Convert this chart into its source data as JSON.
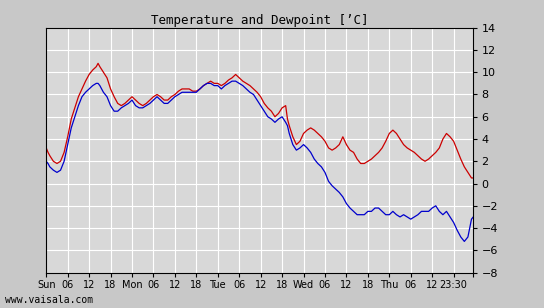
{
  "title": "Temperature and Dewpoint [’C]",
  "watermark": "www.vaisala.com",
  "ylim": [
    -8,
    14
  ],
  "yticks": [
    -8,
    -6,
    -4,
    -2,
    0,
    2,
    4,
    6,
    8,
    10,
    12,
    14
  ],
  "x_tick_positions": [
    0,
    6,
    12,
    18,
    24,
    30,
    36,
    42,
    48,
    54,
    60,
    66,
    72,
    78,
    84,
    90,
    96,
    102,
    108,
    114,
    119.5
  ],
  "x_tick_labels": [
    "Sun",
    "06",
    "12",
    "18",
    "Mon",
    "06",
    "12",
    "18",
    "Tue",
    "06",
    "12",
    "18",
    "Wed",
    "06",
    "12",
    "18",
    "Thu",
    "06",
    "12",
    "23:30",
    ""
  ],
  "x_end": 119.5,
  "bg_color": "#c8c8c8",
  "plot_bg_color": "#d8d8d8",
  "grid_color": "#ffffff",
  "temp_color": "#cc0000",
  "dew_color": "#0000cc",
  "temp_data": [
    [
      0,
      3.2
    ],
    [
      0.5,
      2.8
    ],
    [
      1,
      2.5
    ],
    [
      2,
      2.0
    ],
    [
      3,
      1.8
    ],
    [
      4,
      2.0
    ],
    [
      5,
      2.8
    ],
    [
      6,
      4.2
    ],
    [
      7,
      5.8
    ],
    [
      8,
      6.8
    ],
    [
      9,
      7.8
    ],
    [
      10,
      8.5
    ],
    [
      11,
      9.2
    ],
    [
      12,
      9.8
    ],
    [
      13,
      10.2
    ],
    [
      14,
      10.5
    ],
    [
      14.5,
      10.8
    ],
    [
      15,
      10.5
    ],
    [
      16,
      10.0
    ],
    [
      17,
      9.5
    ],
    [
      18,
      8.5
    ],
    [
      19,
      7.8
    ],
    [
      20,
      7.2
    ],
    [
      21,
      7.0
    ],
    [
      22,
      7.2
    ],
    [
      23,
      7.5
    ],
    [
      24,
      7.8
    ],
    [
      25,
      7.5
    ],
    [
      26,
      7.2
    ],
    [
      27,
      7.0
    ],
    [
      28,
      7.2
    ],
    [
      29,
      7.5
    ],
    [
      30,
      7.8
    ],
    [
      31,
      8.0
    ],
    [
      32,
      7.8
    ],
    [
      33,
      7.5
    ],
    [
      34,
      7.5
    ],
    [
      35,
      7.8
    ],
    [
      36,
      8.0
    ],
    [
      37,
      8.3
    ],
    [
      38,
      8.5
    ],
    [
      39,
      8.5
    ],
    [
      40,
      8.5
    ],
    [
      41,
      8.3
    ],
    [
      42,
      8.3
    ],
    [
      43,
      8.5
    ],
    [
      44,
      8.8
    ],
    [
      45,
      9.0
    ],
    [
      46,
      9.2
    ],
    [
      47,
      9.0
    ],
    [
      48,
      9.0
    ],
    [
      49,
      8.8
    ],
    [
      50,
      9.0
    ],
    [
      51,
      9.3
    ],
    [
      52,
      9.5
    ],
    [
      53,
      9.8
    ],
    [
      54,
      9.5
    ],
    [
      55,
      9.2
    ],
    [
      56,
      9.0
    ],
    [
      57,
      8.8
    ],
    [
      58,
      8.5
    ],
    [
      59,
      8.2
    ],
    [
      60,
      7.8
    ],
    [
      61,
      7.2
    ],
    [
      62,
      6.8
    ],
    [
      63,
      6.5
    ],
    [
      64,
      6.0
    ],
    [
      65,
      6.3
    ],
    [
      66,
      6.8
    ],
    [
      67,
      7.0
    ],
    [
      67.5,
      5.8
    ],
    [
      68,
      5.2
    ],
    [
      69,
      4.2
    ],
    [
      70,
      3.5
    ],
    [
      71,
      3.8
    ],
    [
      72,
      4.5
    ],
    [
      73,
      4.8
    ],
    [
      74,
      5.0
    ],
    [
      75,
      4.8
    ],
    [
      76,
      4.5
    ],
    [
      77,
      4.2
    ],
    [
      78,
      3.8
    ],
    [
      79,
      3.2
    ],
    [
      80,
      3.0
    ],
    [
      81,
      3.2
    ],
    [
      82,
      3.5
    ],
    [
      83,
      4.2
    ],
    [
      84,
      3.5
    ],
    [
      85,
      3.0
    ],
    [
      86,
      2.8
    ],
    [
      87,
      2.2
    ],
    [
      88,
      1.8
    ],
    [
      89,
      1.8
    ],
    [
      90,
      2.0
    ],
    [
      91,
      2.2
    ],
    [
      92,
      2.5
    ],
    [
      93,
      2.8
    ],
    [
      94,
      3.2
    ],
    [
      95,
      3.8
    ],
    [
      96,
      4.5
    ],
    [
      97,
      4.8
    ],
    [
      98,
      4.5
    ],
    [
      99,
      4.0
    ],
    [
      100,
      3.5
    ],
    [
      101,
      3.2
    ],
    [
      102,
      3.0
    ],
    [
      103,
      2.8
    ],
    [
      104,
      2.5
    ],
    [
      105,
      2.2
    ],
    [
      106,
      2.0
    ],
    [
      107,
      2.2
    ],
    [
      108,
      2.5
    ],
    [
      109,
      2.8
    ],
    [
      110,
      3.2
    ],
    [
      111,
      4.0
    ],
    [
      112,
      4.5
    ],
    [
      113,
      4.2
    ],
    [
      114,
      3.8
    ],
    [
      115,
      3.0
    ],
    [
      116,
      2.2
    ],
    [
      117,
      1.5
    ],
    [
      118,
      1.0
    ],
    [
      119,
      0.5
    ],
    [
      119.5,
      0.5
    ]
  ],
  "dew_data": [
    [
      0,
      2.0
    ],
    [
      0.5,
      1.8
    ],
    [
      1,
      1.5
    ],
    [
      2,
      1.2
    ],
    [
      3,
      1.0
    ],
    [
      4,
      1.2
    ],
    [
      5,
      2.0
    ],
    [
      6,
      3.5
    ],
    [
      7,
      5.0
    ],
    [
      8,
      6.0
    ],
    [
      9,
      7.0
    ],
    [
      10,
      7.8
    ],
    [
      11,
      8.2
    ],
    [
      12,
      8.5
    ],
    [
      13,
      8.8
    ],
    [
      14,
      9.0
    ],
    [
      14.5,
      9.0
    ],
    [
      15,
      8.8
    ],
    [
      16,
      8.2
    ],
    [
      17,
      7.8
    ],
    [
      18,
      7.0
    ],
    [
      19,
      6.5
    ],
    [
      20,
      6.5
    ],
    [
      21,
      6.8
    ],
    [
      22,
      7.0
    ],
    [
      23,
      7.2
    ],
    [
      24,
      7.5
    ],
    [
      25,
      7.0
    ],
    [
      26,
      6.8
    ],
    [
      27,
      6.8
    ],
    [
      28,
      7.0
    ],
    [
      29,
      7.2
    ],
    [
      30,
      7.5
    ],
    [
      31,
      7.8
    ],
    [
      32,
      7.5
    ],
    [
      33,
      7.2
    ],
    [
      34,
      7.2
    ],
    [
      35,
      7.5
    ],
    [
      36,
      7.8
    ],
    [
      37,
      8.0
    ],
    [
      38,
      8.2
    ],
    [
      39,
      8.2
    ],
    [
      40,
      8.2
    ],
    [
      41,
      8.2
    ],
    [
      42,
      8.2
    ],
    [
      43,
      8.5
    ],
    [
      44,
      8.8
    ],
    [
      45,
      9.0
    ],
    [
      46,
      9.0
    ],
    [
      47,
      8.8
    ],
    [
      48,
      8.8
    ],
    [
      49,
      8.5
    ],
    [
      50,
      8.8
    ],
    [
      51,
      9.0
    ],
    [
      52,
      9.2
    ],
    [
      53,
      9.2
    ],
    [
      54,
      9.0
    ],
    [
      55,
      8.8
    ],
    [
      56,
      8.5
    ],
    [
      57,
      8.2
    ],
    [
      58,
      8.0
    ],
    [
      59,
      7.5
    ],
    [
      60,
      7.0
    ],
    [
      61,
      6.5
    ],
    [
      62,
      6.0
    ],
    [
      63,
      5.8
    ],
    [
      64,
      5.5
    ],
    [
      65,
      5.8
    ],
    [
      66,
      6.0
    ],
    [
      67,
      5.5
    ],
    [
      67.5,
      5.2
    ],
    [
      68,
      4.5
    ],
    [
      69,
      3.5
    ],
    [
      70,
      3.0
    ],
    [
      71,
      3.2
    ],
    [
      72,
      3.5
    ],
    [
      73,
      3.2
    ],
    [
      74,
      2.8
    ],
    [
      75,
      2.2
    ],
    [
      76,
      1.8
    ],
    [
      77,
      1.5
    ],
    [
      78,
      1.0
    ],
    [
      79,
      0.2
    ],
    [
      80,
      -0.2
    ],
    [
      81,
      -0.5
    ],
    [
      82,
      -0.8
    ],
    [
      83,
      -1.2
    ],
    [
      84,
      -1.8
    ],
    [
      85,
      -2.2
    ],
    [
      86,
      -2.5
    ],
    [
      87,
      -2.8
    ],
    [
      88,
      -2.8
    ],
    [
      89,
      -2.8
    ],
    [
      90,
      -2.5
    ],
    [
      91,
      -2.5
    ],
    [
      92,
      -2.2
    ],
    [
      93,
      -2.2
    ],
    [
      94,
      -2.5
    ],
    [
      95,
      -2.8
    ],
    [
      96,
      -2.8
    ],
    [
      97,
      -2.5
    ],
    [
      98,
      -2.8
    ],
    [
      99,
      -3.0
    ],
    [
      100,
      -2.8
    ],
    [
      101,
      -3.0
    ],
    [
      102,
      -3.2
    ],
    [
      103,
      -3.0
    ],
    [
      104,
      -2.8
    ],
    [
      105,
      -2.5
    ],
    [
      106,
      -2.5
    ],
    [
      107,
      -2.5
    ],
    [
      108,
      -2.2
    ],
    [
      109,
      -2.0
    ],
    [
      110,
      -2.5
    ],
    [
      111,
      -2.8
    ],
    [
      112,
      -2.5
    ],
    [
      113,
      -3.0
    ],
    [
      114,
      -3.5
    ],
    [
      115,
      -4.2
    ],
    [
      116,
      -4.8
    ],
    [
      117,
      -5.2
    ],
    [
      118,
      -4.8
    ],
    [
      119,
      -3.2
    ],
    [
      119.5,
      -3.0
    ]
  ]
}
